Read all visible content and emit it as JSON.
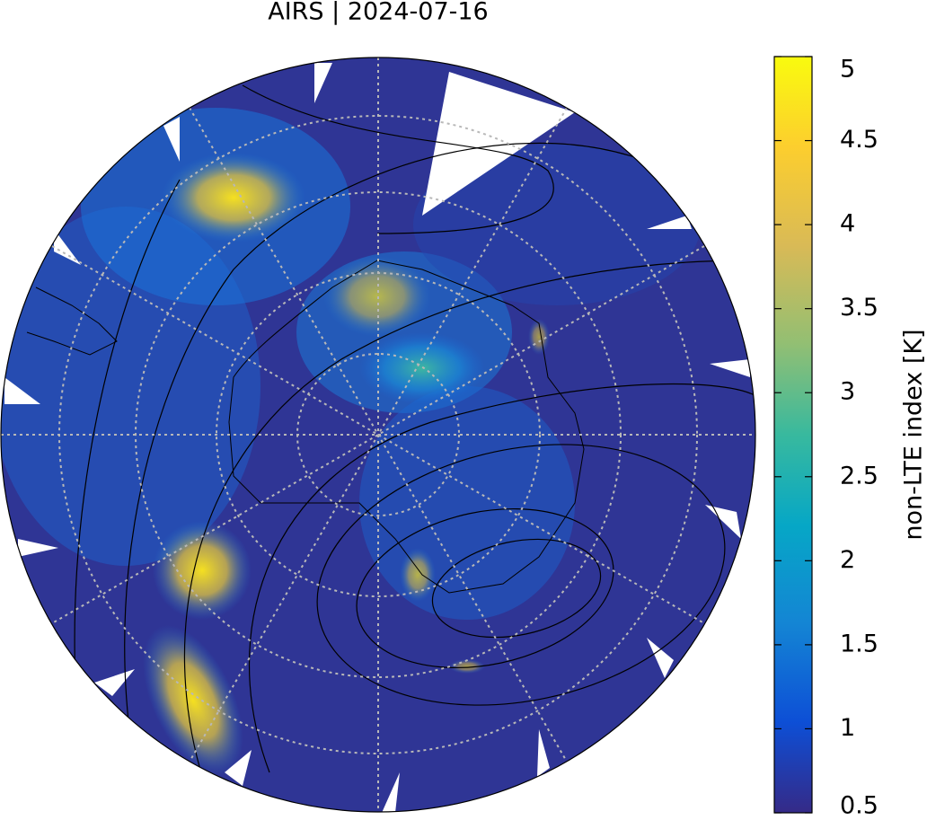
{
  "title": "AIRS | 2024-07-16",
  "colorbar": {
    "label": "non-LTE index [K]",
    "lim": [
      0.5,
      5
    ],
    "ticks": [
      0.5,
      1,
      1.5,
      2,
      2.5,
      3,
      3.5,
      4,
      4.5,
      5
    ]
  }
}
